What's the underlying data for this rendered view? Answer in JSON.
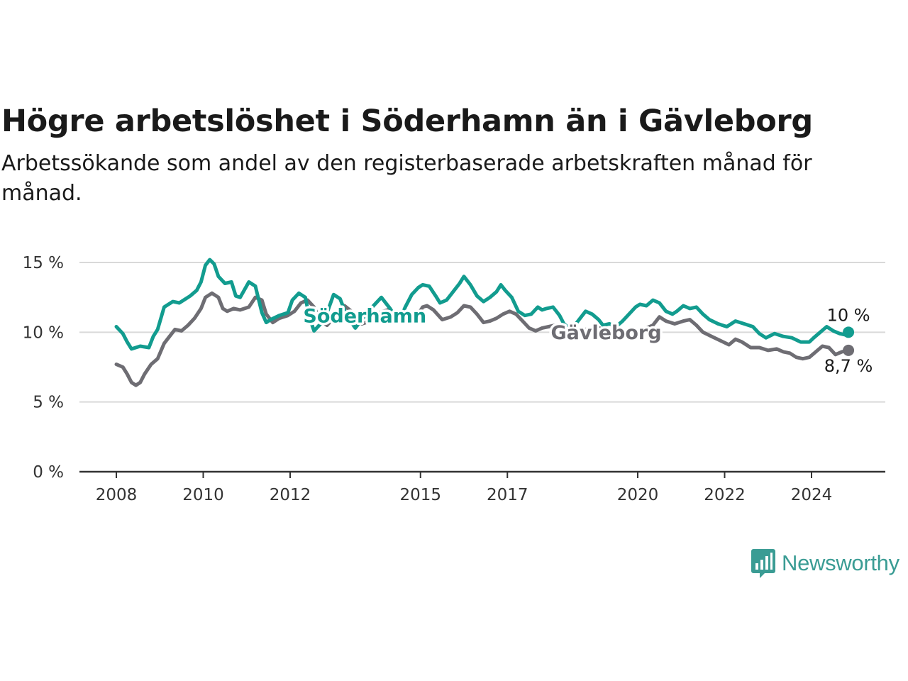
{
  "title": "Högre arbetslöshet i Söderhamn än i Gävleborg",
  "subtitle": "Arbetssökande som andel av den registerbaserade arbetskraften månad för månad.",
  "brand": {
    "name": "Newsworthy",
    "icon": "newsworthy-chart-bubble-icon"
  },
  "colors": {
    "soderhamn": "#129c8f",
    "gavleborg": "#6e6d73",
    "grid": "#d9d9d9",
    "axis": "#333333",
    "brand": "#3a9c94"
  },
  "chart_data": {
    "type": "line",
    "ylim": [
      0,
      15
    ],
    "yticks": [
      0,
      5,
      10,
      15
    ],
    "ytick_labels": [
      "0 %",
      "5 %",
      "10 %",
      "15 %"
    ],
    "xtick_labels": [
      "2008",
      "2010",
      "2012",
      "2015",
      "2017",
      "2020",
      "2022",
      "2024"
    ],
    "xtick_values": [
      2008,
      2010,
      2012,
      2015,
      2017,
      2020,
      2022,
      2024
    ],
    "grid": true,
    "legend": "inline labels",
    "series": [
      {
        "name": "Söderhamn",
        "key": "soderhamn",
        "end_label": "10 %",
        "x": [
          2008.0,
          2008.15,
          2008.25,
          2008.35,
          2008.55,
          2008.75,
          2008.85,
          2008.95,
          2009.1,
          2009.2,
          2009.3,
          2009.45,
          2009.6,
          2009.7,
          2009.85,
          2009.95,
          2010.05,
          2010.15,
          2010.25,
          2010.35,
          2010.5,
          2010.65,
          2010.75,
          2010.85,
          2011.05,
          2011.2,
          2011.35,
          2011.45,
          2011.55,
          2011.75,
          2011.95,
          2012.05,
          2012.2,
          2012.35,
          2012.45,
          2012.55,
          2012.7,
          2012.85,
          2013.0,
          2013.15,
          2013.3,
          2013.5,
          2013.65,
          2013.8,
          2013.95,
          2014.1,
          2014.3,
          2014.5,
          2014.65,
          2014.8,
          2014.95,
          2015.05,
          2015.2,
          2015.35,
          2015.45,
          2015.6,
          2015.75,
          2015.9,
          2016.0,
          2016.15,
          2016.3,
          2016.45,
          2016.6,
          2016.75,
          2016.85,
          2016.95,
          2017.1,
          2017.25,
          2017.4,
          2017.55,
          2017.7,
          2017.8,
          2017.9,
          2018.05,
          2018.2,
          2018.3,
          2018.45,
          2018.55,
          2018.65,
          2018.8,
          2018.95,
          2019.1,
          2019.2,
          2019.35,
          2019.5,
          2019.65,
          2019.8,
          2019.95,
          2020.05,
          2020.2,
          2020.35,
          2020.5,
          2020.65,
          2020.8,
          2020.9,
          2021.05,
          2021.2,
          2021.35,
          2021.5,
          2021.65,
          2021.85,
          2022.05,
          2022.25,
          2022.45,
          2022.65,
          2022.8,
          2022.95,
          2023.15,
          2023.35,
          2023.55,
          2023.75,
          2023.95,
          2024.05,
          2024.2,
          2024.35,
          2024.5,
          2024.65,
          2024.8,
          2024.85
        ],
        "values": [
          10.4,
          9.9,
          9.3,
          8.8,
          9.0,
          8.9,
          9.7,
          10.2,
          11.8,
          12.0,
          12.2,
          12.1,
          12.4,
          12.6,
          13.0,
          13.6,
          14.8,
          15.2,
          14.9,
          14.0,
          13.5,
          13.6,
          12.6,
          12.5,
          13.6,
          13.3,
          11.4,
          10.7,
          10.9,
          11.2,
          11.4,
          12.3,
          12.8,
          12.5,
          11.0,
          10.1,
          10.6,
          11.4,
          12.7,
          12.4,
          11.2,
          10.3,
          10.9,
          11.5,
          12.0,
          12.5,
          11.7,
          10.7,
          11.8,
          12.7,
          13.2,
          13.4,
          13.3,
          12.6,
          12.1,
          12.3,
          12.9,
          13.5,
          14.0,
          13.4,
          12.6,
          12.2,
          12.5,
          12.9,
          13.4,
          13.0,
          12.5,
          11.5,
          11.2,
          11.3,
          11.8,
          11.6,
          11.7,
          11.8,
          11.2,
          10.6,
          10.2,
          10.5,
          10.9,
          11.5,
          11.3,
          10.9,
          10.5,
          10.6,
          10.4,
          10.8,
          11.3,
          11.8,
          12.0,
          11.9,
          12.3,
          12.1,
          11.5,
          11.3,
          11.5,
          11.9,
          11.7,
          11.8,
          11.3,
          10.9,
          10.6,
          10.4,
          10.8,
          10.6,
          10.4,
          9.9,
          9.6,
          9.9,
          9.7,
          9.6,
          9.3,
          9.3,
          9.6,
          10.0,
          10.4,
          10.1,
          9.9,
          9.8,
          10.0
        ]
      },
      {
        "name": "Gävleborg",
        "key": "gavleborg",
        "end_label": "8,7 %",
        "x": [
          2008.0,
          2008.15,
          2008.25,
          2008.35,
          2008.45,
          2008.55,
          2008.65,
          2008.8,
          2008.95,
          2009.1,
          2009.2,
          2009.35,
          2009.5,
          2009.65,
          2009.8,
          2009.95,
          2010.05,
          2010.2,
          2010.35,
          2010.45,
          2010.55,
          2010.7,
          2010.85,
          2011.05,
          2011.2,
          2011.35,
          2011.45,
          2011.6,
          2011.75,
          2011.95,
          2012.1,
          2012.25,
          2012.4,
          2012.55,
          2012.7,
          2012.85,
          2013.05,
          2013.25,
          2013.45,
          2013.65,
          2013.85,
          2014.05,
          2014.25,
          2014.45,
          2014.6,
          2014.8,
          2014.95,
          2015.05,
          2015.15,
          2015.3,
          2015.5,
          2015.7,
          2015.85,
          2016.0,
          2016.15,
          2016.3,
          2016.45,
          2016.6,
          2016.75,
          2016.9,
          2017.05,
          2017.2,
          2017.35,
          2017.5,
          2017.65,
          2017.8,
          2017.95,
          2018.1,
          2018.25,
          2018.45,
          2018.65,
          2018.85,
          2019.05,
          2019.25,
          2019.45,
          2019.65,
          2019.85,
          2020.05,
          2020.2,
          2020.35,
          2020.5,
          2020.65,
          2020.85,
          2021.05,
          2021.2,
          2021.35,
          2021.5,
          2021.7,
          2021.9,
          2022.1,
          2022.25,
          2022.4,
          2022.6,
          2022.8,
          2023.0,
          2023.2,
          2023.35,
          2023.5,
          2023.65,
          2023.8,
          2023.95,
          2024.1,
          2024.25,
          2024.4,
          2024.55,
          2024.7,
          2024.85
        ],
        "values": [
          7.7,
          7.5,
          7.0,
          6.4,
          6.2,
          6.4,
          7.0,
          7.7,
          8.1,
          9.2,
          9.6,
          10.2,
          10.1,
          10.5,
          11.0,
          11.7,
          12.5,
          12.8,
          12.5,
          11.7,
          11.5,
          11.7,
          11.6,
          11.8,
          12.5,
          12.3,
          11.3,
          10.7,
          11.0,
          11.2,
          11.5,
          12.1,
          12.3,
          11.8,
          10.8,
          10.5,
          11.2,
          11.9,
          11.4,
          10.6,
          10.8,
          11.4,
          11.6,
          11.3,
          10.7,
          10.8,
          11.3,
          11.8,
          11.9,
          11.6,
          10.9,
          11.1,
          11.4,
          11.9,
          11.8,
          11.3,
          10.7,
          10.8,
          11.0,
          11.3,
          11.5,
          11.3,
          10.8,
          10.3,
          10.1,
          10.3,
          10.4,
          10.5,
          10.3,
          10.0,
          10.2,
          10.2,
          10.4,
          10.1,
          9.9,
          9.8,
          10.0,
          10.2,
          10.3,
          10.5,
          11.1,
          10.8,
          10.6,
          10.8,
          10.9,
          10.5,
          10.0,
          9.7,
          9.4,
          9.1,
          9.5,
          9.3,
          8.9,
          8.9,
          8.7,
          8.8,
          8.6,
          8.5,
          8.2,
          8.1,
          8.2,
          8.6,
          9.0,
          8.9,
          8.4,
          8.6,
          8.7
        ]
      }
    ]
  }
}
